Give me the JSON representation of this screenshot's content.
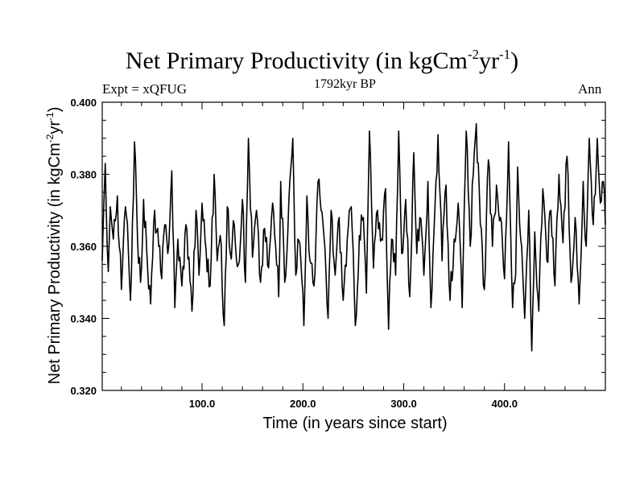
{
  "chart_data": {
    "type": "line",
    "title": {
      "main": "Net Primary Productivity (in kgCm",
      "sup1": "-2",
      "mid": "yr",
      "sup2": "-1",
      "end": ")"
    },
    "annotations": {
      "experiment": "Expt = xQFUG",
      "period": "1792kyr BP",
      "season": "Ann"
    },
    "xlabel": "Time (in years since start)",
    "ylabel": "Net Primary Productivity (in kgCm-2yr-1)",
    "xlim": [
      1,
      500
    ],
    "ylim": [
      0.32,
      0.4
    ],
    "x_ticks": [
      {
        "value": 100,
        "label": "100.0"
      },
      {
        "value": 200,
        "label": "200.0"
      },
      {
        "value": 300,
        "label": "300.0"
      },
      {
        "value": 400,
        "label": "400.0"
      }
    ],
    "y_ticks": [
      {
        "value": 0.32,
        "label": "0.320"
      },
      {
        "value": 0.34,
        "label": "0.340"
      },
      {
        "value": 0.36,
        "label": "0.360"
      },
      {
        "value": 0.38,
        "label": "0.380"
      },
      {
        "value": 0.4,
        "label": "0.400"
      }
    ],
    "series": [
      {
        "name": "Net Primary Productivity",
        "color": "#000000",
        "anchors_x": [
          1,
          4,
          7,
          9,
          12,
          16,
          20,
          24,
          27,
          29,
          33,
          36,
          39,
          42,
          46,
          49,
          53,
          57,
          60,
          63,
          66,
          70,
          73,
          76,
          80,
          84,
          87,
          90,
          94,
          97,
          100,
          104,
          108,
          112,
          115,
          118,
          122,
          125,
          128,
          132,
          136,
          140,
          143,
          146,
          150,
          154,
          158,
          162,
          166,
          170,
          173,
          176,
          178,
          182,
          186,
          190,
          193,
          195,
          198,
          201,
          204,
          207,
          211,
          215,
          220,
          225,
          228,
          232,
          236,
          240,
          244,
          248,
          252,
          256,
          260,
          263,
          266,
          270,
          274,
          278,
          282,
          285,
          288,
          292,
          295,
          298,
          302,
          306,
          310,
          313,
          316,
          320,
          324,
          327,
          330,
          334,
          338,
          342,
          346,
          350,
          354,
          358,
          362,
          366,
          369,
          372,
          376,
          380,
          384,
          388,
          392,
          396,
          400,
          404,
          408,
          411,
          413,
          416,
          420,
          424,
          427,
          430,
          434,
          438,
          442,
          446,
          450,
          454,
          458,
          462,
          466,
          470,
          474,
          478,
          481,
          484,
          488,
          492,
          495,
          498,
          500
        ],
        "anchors_y": [
          0.356,
          0.383,
          0.353,
          0.371,
          0.362,
          0.374,
          0.348,
          0.371,
          0.358,
          0.345,
          0.389,
          0.362,
          0.35,
          0.373,
          0.354,
          0.344,
          0.37,
          0.36,
          0.351,
          0.366,
          0.358,
          0.381,
          0.343,
          0.362,
          0.349,
          0.366,
          0.357,
          0.342,
          0.37,
          0.352,
          0.372,
          0.359,
          0.349,
          0.38,
          0.356,
          0.363,
          0.338,
          0.371,
          0.358,
          0.366,
          0.355,
          0.373,
          0.35,
          0.39,
          0.357,
          0.37,
          0.35,
          0.365,
          0.354,
          0.372,
          0.36,
          0.346,
          0.378,
          0.35,
          0.372,
          0.39,
          0.352,
          0.362,
          0.356,
          0.338,
          0.374,
          0.356,
          0.349,
          0.378,
          0.366,
          0.34,
          0.37,
          0.352,
          0.368,
          0.345,
          0.362,
          0.371,
          0.338,
          0.363,
          0.368,
          0.347,
          0.392,
          0.354,
          0.37,
          0.362,
          0.376,
          0.337,
          0.362,
          0.352,
          0.392,
          0.358,
          0.373,
          0.346,
          0.386,
          0.358,
          0.368,
          0.352,
          0.378,
          0.343,
          0.364,
          0.391,
          0.356,
          0.377,
          0.345,
          0.362,
          0.372,
          0.343,
          0.392,
          0.36,
          0.38,
          0.394,
          0.366,
          0.348,
          0.384,
          0.36,
          0.377,
          0.368,
          0.351,
          0.389,
          0.343,
          0.352,
          0.382,
          0.362,
          0.34,
          0.37,
          0.331,
          0.364,
          0.342,
          0.376,
          0.356,
          0.37,
          0.349,
          0.38,
          0.361,
          0.385,
          0.35,
          0.368,
          0.344,
          0.378,
          0.36,
          0.39,
          0.366,
          0.39,
          0.372,
          0.378,
          0.366
        ],
        "noise_amplitude": 0.004
      }
    ]
  }
}
